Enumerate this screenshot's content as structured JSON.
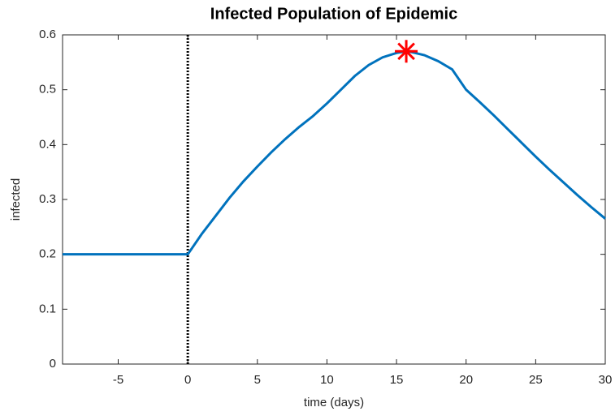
{
  "chart_data": {
    "type": "line",
    "title": "Infected Population of Epidemic",
    "x_label": "time (days)",
    "y_label": "infected",
    "x": [
      -9,
      0,
      1,
      2,
      3,
      4,
      5,
      6,
      7,
      8,
      9,
      10,
      11,
      12,
      13,
      14,
      15,
      15.7,
      16,
      17,
      18,
      19,
      20,
      21,
      22,
      23,
      24,
      25,
      26,
      27,
      28,
      29,
      30
    ],
    "series": [
      {
        "color": "#0072bd",
        "values": [
          0.2,
          0.2,
          0.237,
          0.27,
          0.303,
          0.333,
          0.36,
          0.386,
          0.41,
          0.432,
          0.452,
          0.475,
          0.5,
          0.525,
          0.545,
          0.559,
          0.567,
          0.57,
          0.569,
          0.563,
          0.552,
          0.537,
          0.5,
          0.477,
          0.453,
          0.428,
          0.403,
          0.378,
          0.354,
          0.331,
          0.308,
          0.286,
          0.265
        ]
      }
    ],
    "vline": {
      "x": 0,
      "color": "#000000"
    },
    "peak_marker": {
      "x": 15.7,
      "y": 0.57,
      "color": "#ff0000"
    },
    "xlim": [
      -9,
      30
    ],
    "xticks": [
      -5,
      0,
      5,
      10,
      15,
      20,
      25,
      30
    ],
    "ylim": [
      0,
      0.6
    ],
    "yticks": [
      0,
      0.1,
      0.2,
      0.3,
      0.4,
      0.5,
      0.6
    ]
  }
}
